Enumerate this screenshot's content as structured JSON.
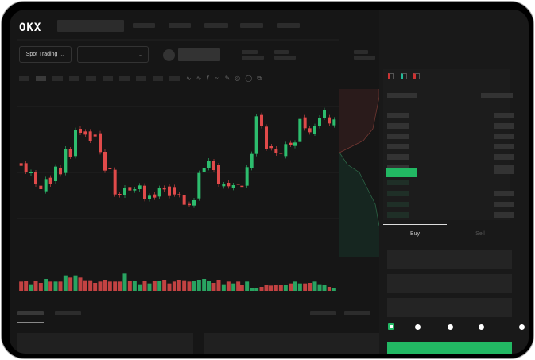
{
  "header": {
    "logo": "OKX"
  },
  "toolbar": {
    "market_type": "Spot Trading"
  },
  "trade": {
    "tabs": [
      {
        "label": "Buy",
        "active": true
      },
      {
        "label": "Sell",
        "active": false
      }
    ],
    "leverage_slider_value": 0
  },
  "colors": {
    "up": "#2dbd6e",
    "down": "#e04a4a",
    "background": "#161616",
    "accent": "#22b863"
  }
}
